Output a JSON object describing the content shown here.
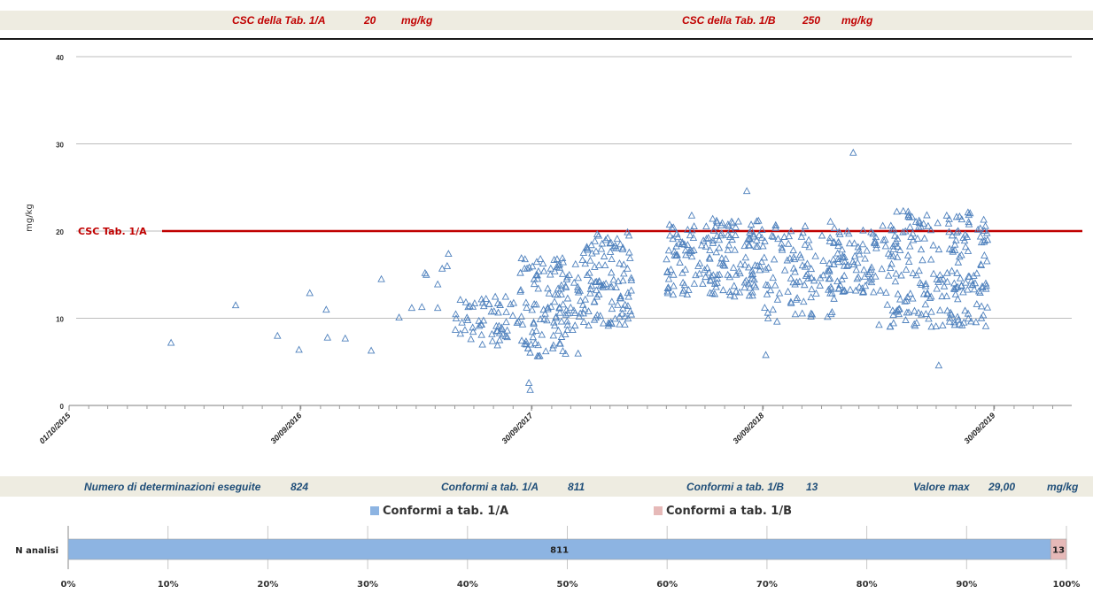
{
  "header": {
    "csc_a_label": "CSC della Tab. 1/A",
    "csc_a_value": "20",
    "csc_a_unit": "mg/kg",
    "csc_b_label": "CSC della Tab. 1/B",
    "csc_b_value": "250",
    "csc_b_unit": "mg/kg"
  },
  "stats": {
    "n_label": "Numero di determinazioni eseguite",
    "n_value": "824",
    "a_label": "Conformi a tab. 1/A",
    "a_value": "811",
    "b_label": "Conformi a tab. 1/B",
    "b_value": "13",
    "max_label": "Valore max",
    "max_value": "29,00",
    "max_unit": "mg/kg"
  },
  "chart_data": [
    {
      "type": "scatter",
      "ylabel": "mg/kg",
      "ylim": [
        0,
        40
      ],
      "yticks": [
        "0",
        "10",
        "20",
        "30",
        "40"
      ],
      "xlim": [
        "2015-10-01",
        "2020-01-31"
      ],
      "xticks": [
        "01/10/2015",
        "30/09/2016",
        "30/09/2017",
        "30/09/2018",
        "30/09/2019"
      ],
      "grid": true,
      "marker": "triangle-outline",
      "marker_color": "#4f81bd",
      "threshold": {
        "label": "CSC Tab. 1/A",
        "value": 20,
        "color": "#c00000"
      },
      "max_value": 29,
      "n_points": 824
    },
    {
      "type": "bar",
      "orientation": "horizontal",
      "stacked": "percent",
      "categories": [
        "N analisi"
      ],
      "series": [
        {
          "name": "Conformi a tab. 1/A",
          "values": [
            811
          ],
          "color": "#8db4e2"
        },
        {
          "name": "Conformi a tab. 1/B",
          "values": [
            13
          ],
          "color": "#e6b9b8"
        }
      ],
      "xticks": [
        "0%",
        "10%",
        "20%",
        "30%",
        "40%",
        "50%",
        "60%",
        "70%",
        "80%",
        "90%",
        "100%"
      ],
      "legend": "top"
    }
  ]
}
